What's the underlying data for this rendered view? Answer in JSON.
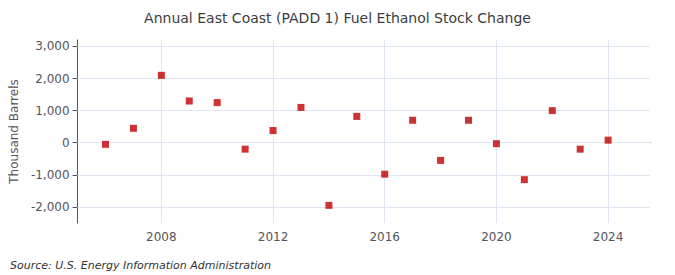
{
  "chart_data": {
    "type": "scatter",
    "title": "Annual East Coast (PADD 1) Fuel Ethanol Stock Change",
    "ylabel": "Thousand Barrels",
    "annotations": [
      "Source: U.S. Energy Information Administration"
    ],
    "x": [
      2006,
      2007,
      2008,
      2009,
      2010,
      2011,
      2012,
      2013,
      2014,
      2015,
      2016,
      2017,
      2018,
      2019,
      2020,
      2021,
      2022,
      2023,
      2024
    ],
    "values": [
      -50,
      450,
      2100,
      1300,
      1250,
      -200,
      380,
      1100,
      -1950,
      820,
      -980,
      700,
      -550,
      700,
      -30,
      -1150,
      1000,
      -200,
      80
    ],
    "color": "#C00000",
    "marker": "square",
    "xlim": [
      2005.0,
      2025.5
    ],
    "xticks": [
      2008,
      2012,
      2016,
      2020,
      2024
    ],
    "ylim": [
      -2500,
      3200
    ],
    "yticks": [
      {
        "value": -2000,
        "label": "-2,000"
      },
      {
        "value": -1000,
        "label": "-1,000"
      },
      0,
      {
        "value": 1000,
        "label": "1,000"
      },
      {
        "value": 2000,
        "label": "2,000"
      },
      {
        "value": 3000,
        "label": "3,000"
      }
    ],
    "grid": true
  }
}
